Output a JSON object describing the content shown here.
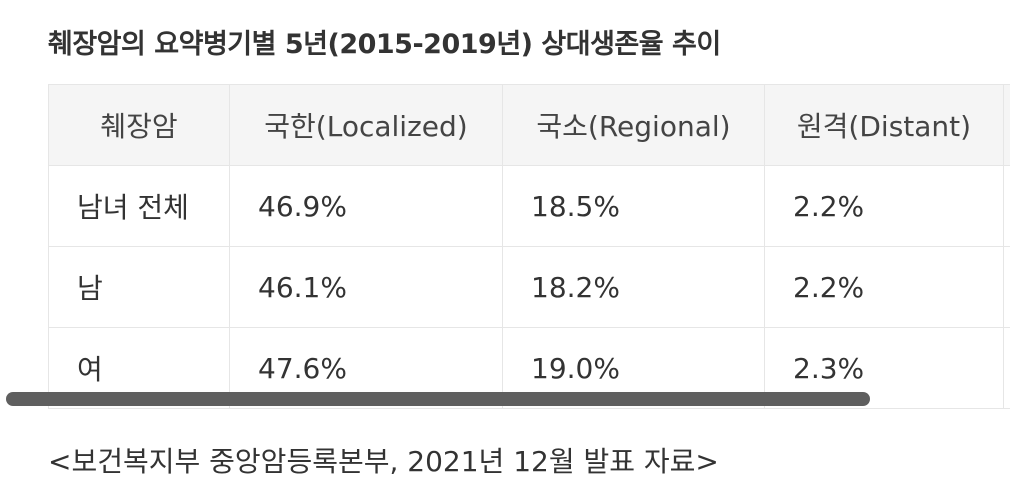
{
  "title": "췌장암의 요약병기별 5년(2015-2019년) 상대생존율 추이",
  "table": {
    "headers": [
      "췌장암",
      "국한(Localized)",
      "국소(Regional)",
      "원격(Distant)",
      ""
    ],
    "rows": [
      [
        "남녀 전체",
        "46.9%",
        "18.5%",
        "2.2%",
        ""
      ],
      [
        "남",
        "46.1%",
        "18.2%",
        "2.2%",
        ""
      ],
      [
        "여",
        "47.6%",
        "19.0%",
        "2.3%",
        ""
      ]
    ]
  },
  "source": "<보건복지부 중앙암등록본부, 2021년 12월 발표 자료>"
}
